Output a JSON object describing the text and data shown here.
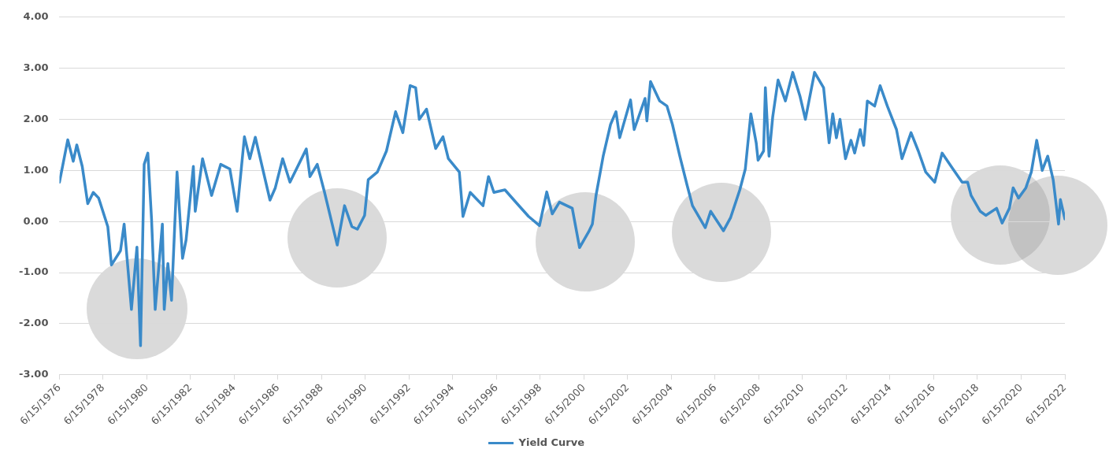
{
  "chart_data": {
    "type": "line",
    "legend": "bottom",
    "grid": "y",
    "marker": "none",
    "line_style": "solid",
    "x": [
      "1976-06-15",
      "1976-11",
      "1977-02",
      "1977-04",
      "1977-07",
      "1977-10",
      "1978-01",
      "1978-04",
      "1978-09",
      "1978-11",
      "1979-04",
      "1979-06",
      "1979-10",
      "1980-01",
      "1980-03",
      "1980-05",
      "1980-07",
      "1980-09",
      "1980-11",
      "1981-03",
      "1981-04",
      "1981-06",
      "1981-08",
      "1981-11",
      "1982-02",
      "1982-04",
      "1982-08",
      "1982-09",
      "1983-01",
      "1983-06",
      "1983-11",
      "1984-04",
      "1984-08",
      "1984-12",
      "1985-03",
      "1985-06",
      "1986-02",
      "1986-05",
      "1986-09",
      "1987-01",
      "1987-10",
      "1987-12",
      "1988-04",
      "1988-08",
      "1989-03",
      "1989-07",
      "1989-11",
      "1990-02",
      "1990-06",
      "1990-08",
      "1991-01",
      "1991-06",
      "1991-11",
      "1992-03",
      "1992-07",
      "1992-10",
      "1992-12",
      "1993-04",
      "1993-09",
      "1994-01",
      "1994-04",
      "1994-10",
      "1994-12",
      "1995-04",
      "1995-11",
      "1996-02",
      "1996-05",
      "1996-11",
      "1997-04",
      "1997-12",
      "1998-06",
      "1998-10",
      "1999-01",
      "1999-05",
      "1999-12",
      "2000-04",
      "2000-09",
      "2000-11",
      "2001-01",
      "2001-05",
      "2001-09",
      "2001-12",
      "2002-02",
      "2002-08",
      "2002-10",
      "2003-04",
      "2003-05",
      "2003-07",
      "2003-12",
      "2004-04",
      "2004-07",
      "2004-11",
      "2005-03",
      "2005-06",
      "2006-01",
      "2006-04",
      "2006-11",
      "2007-03",
      "2007-08",
      "2007-11",
      "2008-02",
      "2008-05",
      "2008-06",
      "2008-09",
      "2008-10",
      "2008-12",
      "2009-02",
      "2009-05",
      "2009-09",
      "2010-01",
      "2010-05",
      "2010-08",
      "2011-01",
      "2011-06",
      "2011-09",
      "2011-11",
      "2012-01",
      "2012-03",
      "2012-06",
      "2012-09",
      "2012-11",
      "2013-02",
      "2013-04",
      "2013-06",
      "2013-10",
      "2014-01",
      "2014-05",
      "2014-10",
      "2015-01",
      "2015-06",
      "2015-10",
      "2016-02",
      "2016-07",
      "2016-11",
      "2017-05",
      "2017-10",
      "2018-01",
      "2018-03",
      "2018-08",
      "2018-11",
      "2019-05",
      "2019-08",
      "2019-12",
      "2020-02",
      "2020-05",
      "2020-09",
      "2020-12",
      "2021-03",
      "2021-06",
      "2021-09",
      "2021-12",
      "2022-03",
      "2022-04",
      "2022-06-15"
    ],
    "series": [
      {
        "name": "Yield Curve",
        "color": "#3a8ac9",
        "values": [
          0.77,
          1.6,
          1.18,
          1.5,
          1.08,
          0.35,
          0.57,
          0.46,
          -0.1,
          -0.85,
          -0.57,
          -0.05,
          -1.72,
          -0.5,
          -2.43,
          1.12,
          1.34,
          0.05,
          -1.72,
          -0.05,
          -1.72,
          -0.82,
          -1.54,
          0.97,
          -0.72,
          -0.36,
          1.08,
          0.2,
          1.23,
          0.51,
          1.12,
          1.03,
          0.2,
          1.66,
          1.23,
          1.65,
          0.42,
          0.66,
          1.23,
          0.77,
          1.42,
          0.88,
          1.12,
          0.57,
          -0.46,
          0.31,
          -0.1,
          -0.15,
          0.12,
          0.82,
          0.97,
          1.38,
          2.15,
          1.74,
          2.66,
          2.62,
          2.0,
          2.2,
          1.43,
          1.66,
          1.23,
          0.97,
          0.1,
          0.57,
          0.31,
          0.88,
          0.57,
          0.62,
          0.42,
          0.1,
          -0.08,
          0.58,
          0.15,
          0.38,
          0.26,
          -0.51,
          -0.2,
          -0.05,
          0.51,
          1.28,
          1.9,
          2.15,
          1.64,
          2.38,
          1.8,
          2.41,
          1.97,
          2.74,
          2.36,
          2.26,
          1.9,
          1.28,
          0.72,
          0.31,
          -0.12,
          0.2,
          -0.18,
          0.08,
          0.62,
          1.03,
          2.11,
          1.54,
          1.2,
          1.38,
          2.62,
          1.28,
          2.05,
          2.77,
          2.36,
          2.92,
          2.46,
          2.0,
          2.92,
          2.62,
          1.54,
          2.11,
          1.64,
          2.0,
          1.23,
          1.59,
          1.34,
          1.8,
          1.49,
          2.36,
          2.26,
          2.66,
          2.26,
          1.8,
          1.23,
          1.74,
          1.38,
          0.97,
          0.77,
          1.34,
          1.03,
          0.77,
          0.77,
          0.51,
          0.2,
          0.12,
          0.26,
          -0.03,
          0.26,
          0.66,
          0.46,
          0.66,
          0.97,
          1.59,
          1.0,
          1.28,
          0.82,
          -0.05,
          0.43,
          0.05
        ]
      }
    ],
    "xlim": [
      "1976-06-15",
      "2022-06-15"
    ],
    "xticks": [
      {
        "value": "1976-06-15",
        "label": "6/15/1976"
      },
      {
        "value": "1978-06-15",
        "label": "6/15/1978"
      },
      {
        "value": "1980-06-15",
        "label": "6/15/1980"
      },
      {
        "value": "1982-06-15",
        "label": "6/15/1982"
      },
      {
        "value": "1984-06-15",
        "label": "6/15/1984"
      },
      {
        "value": "1986-06-15",
        "label": "6/15/1986"
      },
      {
        "value": "1988-06-15",
        "label": "6/15/1988"
      },
      {
        "value": "1990-06-15",
        "label": "6/15/1990"
      },
      {
        "value": "1992-06-15",
        "label": "6/15/1992"
      },
      {
        "value": "1994-06-15",
        "label": "6/15/1994"
      },
      {
        "value": "1996-06-15",
        "label": "6/15/1996"
      },
      {
        "value": "1998-06-15",
        "label": "6/15/1998"
      },
      {
        "value": "2000-06-15",
        "label": "6/15/2000"
      },
      {
        "value": "2002-06-15",
        "label": "6/15/2002"
      },
      {
        "value": "2004-06-15",
        "label": "6/15/2004"
      },
      {
        "value": "2006-06-15",
        "label": "6/15/2006"
      },
      {
        "value": "2008-06-15",
        "label": "6/15/2008"
      },
      {
        "value": "2010-06-15",
        "label": "6/15/2010"
      },
      {
        "value": "2012-06-15",
        "label": "6/15/2012"
      },
      {
        "value": "2014-06-15",
        "label": "6/15/2014"
      },
      {
        "value": "2016-06-15",
        "label": "6/15/2016"
      },
      {
        "value": "2018-06-15",
        "label": "6/15/2018"
      },
      {
        "value": "2020-06-15",
        "label": "6/15/2020"
      },
      {
        "value": "2022-06-15",
        "label": "6/15/2022"
      }
    ],
    "ylim": [
      -3,
      4
    ],
    "yticks": [
      {
        "value": -3,
        "label": "-3.00"
      },
      {
        "value": -2,
        "label": "-2.00"
      },
      {
        "value": -1,
        "label": "-1.00"
      },
      {
        "value": 0,
        "label": "0.00"
      },
      {
        "value": 1,
        "label": "1.00"
      },
      {
        "value": 2,
        "label": "2.00"
      },
      {
        "value": 3,
        "label": "3.00"
      },
      {
        "value": 4,
        "label": "4.00"
      }
    ]
  }
}
